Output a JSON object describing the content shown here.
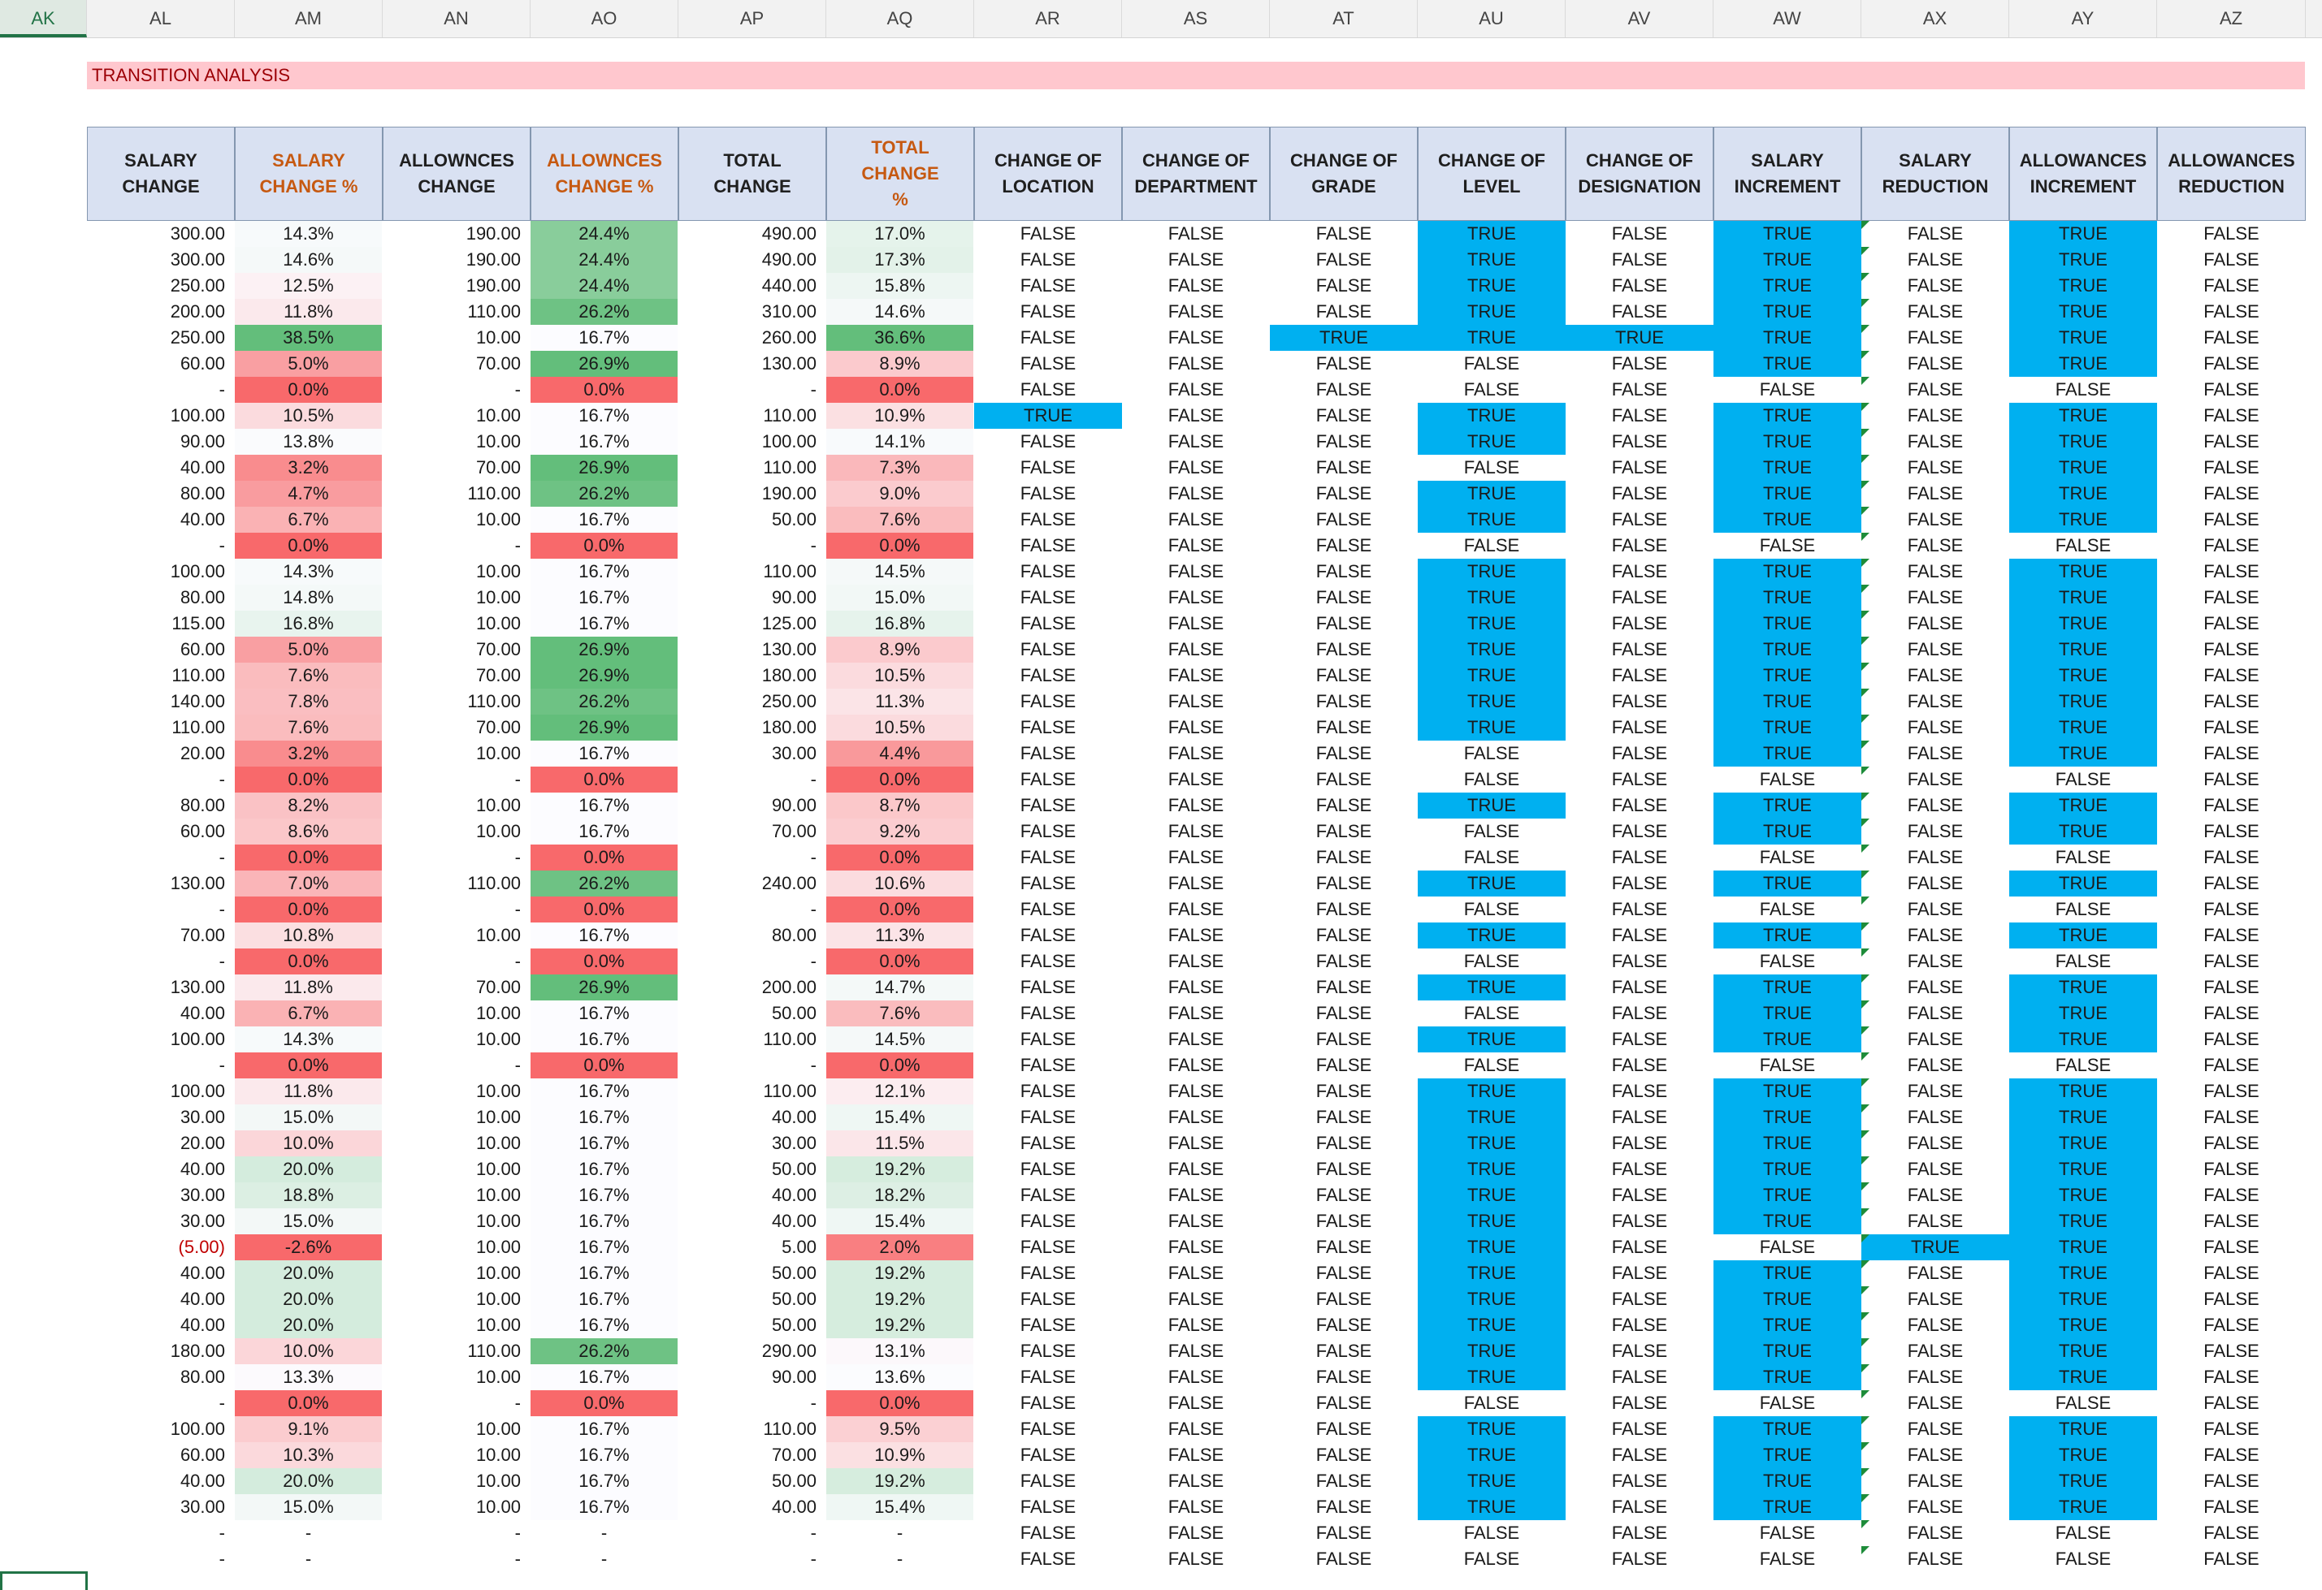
{
  "column_letters": [
    "AK",
    "AL",
    "AM",
    "AN",
    "AO",
    "AP",
    "AQ",
    "AR",
    "AS",
    "AT",
    "AU",
    "AV",
    "AW",
    "AX",
    "AY",
    "AZ"
  ],
  "active_column": "AK",
  "title": "TRANSITION ANALYSIS",
  "headers": [
    {
      "line1": "SALARY",
      "line2": "CHANGE"
    },
    {
      "line1": "SALARY",
      "line2": "CHANGE %"
    },
    {
      "line1": "ALLOWNCES",
      "line2": "CHANGE"
    },
    {
      "line1": "ALLOWNCES",
      "line2": "CHANGE %"
    },
    {
      "line1": "TOTAL CHANGE",
      "line2": ""
    },
    {
      "line1": "TOTAL CHANGE",
      "line2": "%"
    },
    {
      "line1": "CHANGE OF",
      "line2": "LOCATION"
    },
    {
      "line1": "CHANGE OF",
      "line2": "DEPARTMENT"
    },
    {
      "line1": "CHANGE OF",
      "line2": "GRADE"
    },
    {
      "line1": "CHANGE OF",
      "line2": "LEVEL"
    },
    {
      "line1": "CHANGE OF",
      "line2": "DESIGNATION"
    },
    {
      "line1": "SALARY",
      "line2": "INCREMENT"
    },
    {
      "line1": "SALARY",
      "line2": "REDUCTION"
    },
    {
      "line1": "ALLOWANCES",
      "line2": "INCREMENT"
    },
    {
      "line1": "ALLOWANCES",
      "line2": "REDUCTION"
    }
  ],
  "colors": {
    "header_bg": "#d9e1f2",
    "title_bg": "#ffc7ce",
    "title_text": "#9c0006",
    "true_highlight": "#00b0f0",
    "pct_green_strong": "#63be7b",
    "pct_red_strong": "#f8696b"
  },
  "rows": [
    [
      "300.00",
      "14.3%",
      "190.00",
      "24.4%",
      "490.00",
      "17.0%",
      "FALSE",
      "FALSE",
      "FALSE",
      "TRUE",
      "FALSE",
      "TRUE",
      "FALSE",
      "TRUE",
      "FALSE"
    ],
    [
      "300.00",
      "14.6%",
      "190.00",
      "24.4%",
      "490.00",
      "17.3%",
      "FALSE",
      "FALSE",
      "FALSE",
      "TRUE",
      "FALSE",
      "TRUE",
      "FALSE",
      "TRUE",
      "FALSE"
    ],
    [
      "250.00",
      "12.5%",
      "190.00",
      "24.4%",
      "440.00",
      "15.8%",
      "FALSE",
      "FALSE",
      "FALSE",
      "TRUE",
      "FALSE",
      "TRUE",
      "FALSE",
      "TRUE",
      "FALSE"
    ],
    [
      "200.00",
      "11.8%",
      "110.00",
      "26.2%",
      "310.00",
      "14.6%",
      "FALSE",
      "FALSE",
      "FALSE",
      "TRUE",
      "FALSE",
      "TRUE",
      "FALSE",
      "TRUE",
      "FALSE"
    ],
    [
      "250.00",
      "38.5%",
      "10.00",
      "16.7%",
      "260.00",
      "36.6%",
      "FALSE",
      "FALSE",
      "TRUE",
      "TRUE",
      "TRUE",
      "TRUE",
      "FALSE",
      "TRUE",
      "FALSE"
    ],
    [
      "60.00",
      "5.0%",
      "70.00",
      "26.9%",
      "130.00",
      "8.9%",
      "FALSE",
      "FALSE",
      "FALSE",
      "FALSE",
      "FALSE",
      "TRUE",
      "FALSE",
      "TRUE",
      "FALSE"
    ],
    [
      "-",
      "0.0%",
      "-",
      "0.0%",
      "-",
      "0.0%",
      "FALSE",
      "FALSE",
      "FALSE",
      "FALSE",
      "FALSE",
      "FALSE",
      "FALSE",
      "FALSE",
      "FALSE"
    ],
    [
      "100.00",
      "10.5%",
      "10.00",
      "16.7%",
      "110.00",
      "10.9%",
      "TRUE",
      "FALSE",
      "FALSE",
      "TRUE",
      "FALSE",
      "TRUE",
      "FALSE",
      "TRUE",
      "FALSE"
    ],
    [
      "90.00",
      "13.8%",
      "10.00",
      "16.7%",
      "100.00",
      "14.1%",
      "FALSE",
      "FALSE",
      "FALSE",
      "TRUE",
      "FALSE",
      "TRUE",
      "FALSE",
      "TRUE",
      "FALSE"
    ],
    [
      "40.00",
      "3.2%",
      "70.00",
      "26.9%",
      "110.00",
      "7.3%",
      "FALSE",
      "FALSE",
      "FALSE",
      "FALSE",
      "FALSE",
      "TRUE",
      "FALSE",
      "TRUE",
      "FALSE"
    ],
    [
      "80.00",
      "4.7%",
      "110.00",
      "26.2%",
      "190.00",
      "9.0%",
      "FALSE",
      "FALSE",
      "FALSE",
      "TRUE",
      "FALSE",
      "TRUE",
      "FALSE",
      "TRUE",
      "FALSE"
    ],
    [
      "40.00",
      "6.7%",
      "10.00",
      "16.7%",
      "50.00",
      "7.6%",
      "FALSE",
      "FALSE",
      "FALSE",
      "TRUE",
      "FALSE",
      "TRUE",
      "FALSE",
      "TRUE",
      "FALSE"
    ],
    [
      "-",
      "0.0%",
      "-",
      "0.0%",
      "-",
      "0.0%",
      "FALSE",
      "FALSE",
      "FALSE",
      "FALSE",
      "FALSE",
      "FALSE",
      "FALSE",
      "FALSE",
      "FALSE"
    ],
    [
      "100.00",
      "14.3%",
      "10.00",
      "16.7%",
      "110.00",
      "14.5%",
      "FALSE",
      "FALSE",
      "FALSE",
      "TRUE",
      "FALSE",
      "TRUE",
      "FALSE",
      "TRUE",
      "FALSE"
    ],
    [
      "80.00",
      "14.8%",
      "10.00",
      "16.7%",
      "90.00",
      "15.0%",
      "FALSE",
      "FALSE",
      "FALSE",
      "TRUE",
      "FALSE",
      "TRUE",
      "FALSE",
      "TRUE",
      "FALSE"
    ],
    [
      "115.00",
      "16.8%",
      "10.00",
      "16.7%",
      "125.00",
      "16.8%",
      "FALSE",
      "FALSE",
      "FALSE",
      "TRUE",
      "FALSE",
      "TRUE",
      "FALSE",
      "TRUE",
      "FALSE"
    ],
    [
      "60.00",
      "5.0%",
      "70.00",
      "26.9%",
      "130.00",
      "8.9%",
      "FALSE",
      "FALSE",
      "FALSE",
      "TRUE",
      "FALSE",
      "TRUE",
      "FALSE",
      "TRUE",
      "FALSE"
    ],
    [
      "110.00",
      "7.6%",
      "70.00",
      "26.9%",
      "180.00",
      "10.5%",
      "FALSE",
      "FALSE",
      "FALSE",
      "TRUE",
      "FALSE",
      "TRUE",
      "FALSE",
      "TRUE",
      "FALSE"
    ],
    [
      "140.00",
      "7.8%",
      "110.00",
      "26.2%",
      "250.00",
      "11.3%",
      "FALSE",
      "FALSE",
      "FALSE",
      "TRUE",
      "FALSE",
      "TRUE",
      "FALSE",
      "TRUE",
      "FALSE"
    ],
    [
      "110.00",
      "7.6%",
      "70.00",
      "26.9%",
      "180.00",
      "10.5%",
      "FALSE",
      "FALSE",
      "FALSE",
      "TRUE",
      "FALSE",
      "TRUE",
      "FALSE",
      "TRUE",
      "FALSE"
    ],
    [
      "20.00",
      "3.2%",
      "10.00",
      "16.7%",
      "30.00",
      "4.4%",
      "FALSE",
      "FALSE",
      "FALSE",
      "FALSE",
      "FALSE",
      "TRUE",
      "FALSE",
      "TRUE",
      "FALSE"
    ],
    [
      "-",
      "0.0%",
      "-",
      "0.0%",
      "-",
      "0.0%",
      "FALSE",
      "FALSE",
      "FALSE",
      "FALSE",
      "FALSE",
      "FALSE",
      "FALSE",
      "FALSE",
      "FALSE"
    ],
    [
      "80.00",
      "8.2%",
      "10.00",
      "16.7%",
      "90.00",
      "8.7%",
      "FALSE",
      "FALSE",
      "FALSE",
      "TRUE",
      "FALSE",
      "TRUE",
      "FALSE",
      "TRUE",
      "FALSE"
    ],
    [
      "60.00",
      "8.6%",
      "10.00",
      "16.7%",
      "70.00",
      "9.2%",
      "FALSE",
      "FALSE",
      "FALSE",
      "FALSE",
      "FALSE",
      "TRUE",
      "FALSE",
      "TRUE",
      "FALSE"
    ],
    [
      "-",
      "0.0%",
      "-",
      "0.0%",
      "-",
      "0.0%",
      "FALSE",
      "FALSE",
      "FALSE",
      "FALSE",
      "FALSE",
      "FALSE",
      "FALSE",
      "FALSE",
      "FALSE"
    ],
    [
      "130.00",
      "7.0%",
      "110.00",
      "26.2%",
      "240.00",
      "10.6%",
      "FALSE",
      "FALSE",
      "FALSE",
      "TRUE",
      "FALSE",
      "TRUE",
      "FALSE",
      "TRUE",
      "FALSE"
    ],
    [
      "-",
      "0.0%",
      "-",
      "0.0%",
      "-",
      "0.0%",
      "FALSE",
      "FALSE",
      "FALSE",
      "FALSE",
      "FALSE",
      "FALSE",
      "FALSE",
      "FALSE",
      "FALSE"
    ],
    [
      "70.00",
      "10.8%",
      "10.00",
      "16.7%",
      "80.00",
      "11.3%",
      "FALSE",
      "FALSE",
      "FALSE",
      "TRUE",
      "FALSE",
      "TRUE",
      "FALSE",
      "TRUE",
      "FALSE"
    ],
    [
      "-",
      "0.0%",
      "-",
      "0.0%",
      "-",
      "0.0%",
      "FALSE",
      "FALSE",
      "FALSE",
      "FALSE",
      "FALSE",
      "FALSE",
      "FALSE",
      "FALSE",
      "FALSE"
    ],
    [
      "130.00",
      "11.8%",
      "70.00",
      "26.9%",
      "200.00",
      "14.7%",
      "FALSE",
      "FALSE",
      "FALSE",
      "TRUE",
      "FALSE",
      "TRUE",
      "FALSE",
      "TRUE",
      "FALSE"
    ],
    [
      "40.00",
      "6.7%",
      "10.00",
      "16.7%",
      "50.00",
      "7.6%",
      "FALSE",
      "FALSE",
      "FALSE",
      "FALSE",
      "FALSE",
      "TRUE",
      "FALSE",
      "TRUE",
      "FALSE"
    ],
    [
      "100.00",
      "14.3%",
      "10.00",
      "16.7%",
      "110.00",
      "14.5%",
      "FALSE",
      "FALSE",
      "FALSE",
      "TRUE",
      "FALSE",
      "TRUE",
      "FALSE",
      "TRUE",
      "FALSE"
    ],
    [
      "-",
      "0.0%",
      "-",
      "0.0%",
      "-",
      "0.0%",
      "FALSE",
      "FALSE",
      "FALSE",
      "FALSE",
      "FALSE",
      "FALSE",
      "FALSE",
      "FALSE",
      "FALSE"
    ],
    [
      "100.00",
      "11.8%",
      "10.00",
      "16.7%",
      "110.00",
      "12.1%",
      "FALSE",
      "FALSE",
      "FALSE",
      "TRUE",
      "FALSE",
      "TRUE",
      "FALSE",
      "TRUE",
      "FALSE"
    ],
    [
      "30.00",
      "15.0%",
      "10.00",
      "16.7%",
      "40.00",
      "15.4%",
      "FALSE",
      "FALSE",
      "FALSE",
      "TRUE",
      "FALSE",
      "TRUE",
      "FALSE",
      "TRUE",
      "FALSE"
    ],
    [
      "20.00",
      "10.0%",
      "10.00",
      "16.7%",
      "30.00",
      "11.5%",
      "FALSE",
      "FALSE",
      "FALSE",
      "TRUE",
      "FALSE",
      "TRUE",
      "FALSE",
      "TRUE",
      "FALSE"
    ],
    [
      "40.00",
      "20.0%",
      "10.00",
      "16.7%",
      "50.00",
      "19.2%",
      "FALSE",
      "FALSE",
      "FALSE",
      "TRUE",
      "FALSE",
      "TRUE",
      "FALSE",
      "TRUE",
      "FALSE"
    ],
    [
      "30.00",
      "18.8%",
      "10.00",
      "16.7%",
      "40.00",
      "18.2%",
      "FALSE",
      "FALSE",
      "FALSE",
      "TRUE",
      "FALSE",
      "TRUE",
      "FALSE",
      "TRUE",
      "FALSE"
    ],
    [
      "30.00",
      "15.0%",
      "10.00",
      "16.7%",
      "40.00",
      "15.4%",
      "FALSE",
      "FALSE",
      "FALSE",
      "TRUE",
      "FALSE",
      "TRUE",
      "FALSE",
      "TRUE",
      "FALSE"
    ],
    [
      "(5.00)",
      "-2.6%",
      "10.00",
      "16.7%",
      "5.00",
      "2.0%",
      "FALSE",
      "FALSE",
      "FALSE",
      "TRUE",
      "FALSE",
      "FALSE",
      "TRUE",
      "TRUE",
      "FALSE"
    ],
    [
      "40.00",
      "20.0%",
      "10.00",
      "16.7%",
      "50.00",
      "19.2%",
      "FALSE",
      "FALSE",
      "FALSE",
      "TRUE",
      "FALSE",
      "TRUE",
      "FALSE",
      "TRUE",
      "FALSE"
    ],
    [
      "40.00",
      "20.0%",
      "10.00",
      "16.7%",
      "50.00",
      "19.2%",
      "FALSE",
      "FALSE",
      "FALSE",
      "TRUE",
      "FALSE",
      "TRUE",
      "FALSE",
      "TRUE",
      "FALSE"
    ],
    [
      "40.00",
      "20.0%",
      "10.00",
      "16.7%",
      "50.00",
      "19.2%",
      "FALSE",
      "FALSE",
      "FALSE",
      "TRUE",
      "FALSE",
      "TRUE",
      "FALSE",
      "TRUE",
      "FALSE"
    ],
    [
      "180.00",
      "10.0%",
      "110.00",
      "26.2%",
      "290.00",
      "13.1%",
      "FALSE",
      "FALSE",
      "FALSE",
      "TRUE",
      "FALSE",
      "TRUE",
      "FALSE",
      "TRUE",
      "FALSE"
    ],
    [
      "80.00",
      "13.3%",
      "10.00",
      "16.7%",
      "90.00",
      "13.6%",
      "FALSE",
      "FALSE",
      "FALSE",
      "TRUE",
      "FALSE",
      "TRUE",
      "FALSE",
      "TRUE",
      "FALSE"
    ],
    [
      "-",
      "0.0%",
      "-",
      "0.0%",
      "-",
      "0.0%",
      "FALSE",
      "FALSE",
      "FALSE",
      "FALSE",
      "FALSE",
      "FALSE",
      "FALSE",
      "FALSE",
      "FALSE"
    ],
    [
      "100.00",
      "9.1%",
      "10.00",
      "16.7%",
      "110.00",
      "9.5%",
      "FALSE",
      "FALSE",
      "FALSE",
      "TRUE",
      "FALSE",
      "TRUE",
      "FALSE",
      "TRUE",
      "FALSE"
    ],
    [
      "60.00",
      "10.3%",
      "10.00",
      "16.7%",
      "70.00",
      "10.9%",
      "FALSE",
      "FALSE",
      "FALSE",
      "TRUE",
      "FALSE",
      "TRUE",
      "FALSE",
      "TRUE",
      "FALSE"
    ],
    [
      "40.00",
      "20.0%",
      "10.00",
      "16.7%",
      "50.00",
      "19.2%",
      "FALSE",
      "FALSE",
      "FALSE",
      "TRUE",
      "FALSE",
      "TRUE",
      "FALSE",
      "TRUE",
      "FALSE"
    ],
    [
      "30.00",
      "15.0%",
      "10.00",
      "16.7%",
      "40.00",
      "15.4%",
      "FALSE",
      "FALSE",
      "FALSE",
      "TRUE",
      "FALSE",
      "TRUE",
      "FALSE",
      "TRUE",
      "FALSE"
    ],
    [
      "-",
      "-",
      "-",
      "-",
      "-",
      "-",
      "FALSE",
      "FALSE",
      "FALSE",
      "FALSE",
      "FALSE",
      "FALSE",
      "FALSE",
      "FALSE",
      "FALSE"
    ],
    [
      "-",
      "-",
      "-",
      "-",
      "-",
      "-",
      "FALSE",
      "FALSE",
      "FALSE",
      "FALSE",
      "FALSE",
      "FALSE",
      "FALSE",
      "FALSE",
      "FALSE"
    ]
  ]
}
